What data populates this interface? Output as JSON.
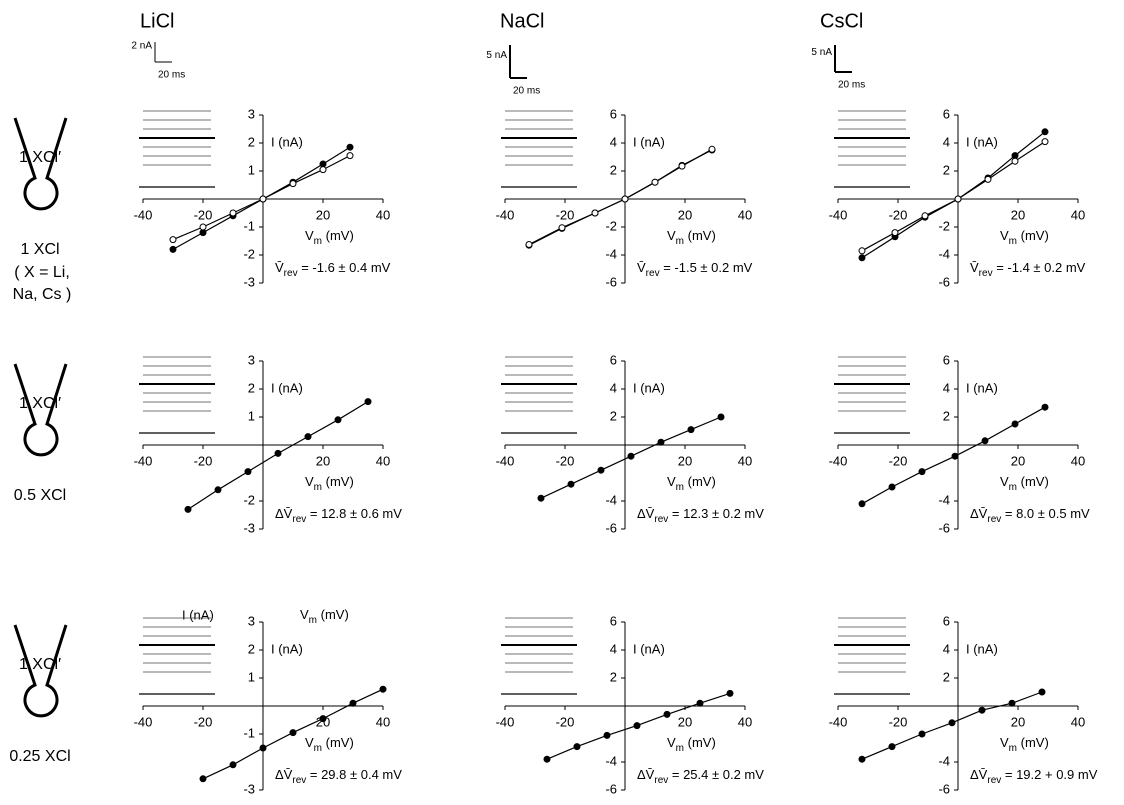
{
  "columns": [
    "LiCl",
    "NaCl",
    "CsCl"
  ],
  "scale_bars": [
    {
      "current": "2 nA",
      "time": "20 ms"
    },
    {
      "current": "5 nA",
      "time": "20 ms"
    },
    {
      "current": "5 nA",
      "time": "20 ms"
    }
  ],
  "rows": [
    {
      "pipette": "1 XCl′",
      "bath": "1 XCl",
      "note": [
        "( X = Li,",
        "Na, Cs )"
      ]
    },
    {
      "pipette": "1 XCl′",
      "bath": "0.5 XCl"
    },
    {
      "pipette": "1 XCl′",
      "bath": "0.25 XCl"
    }
  ],
  "stray_labels": {
    "current": "I (nA)",
    "voltage": [
      "V",
      "m",
      " (mV)"
    ]
  },
  "chart_data": [
    {
      "type": "line",
      "ylabel": "I (nA)",
      "xlabel": [
        "V",
        "m",
        " (mV)"
      ],
      "annotation": [
        "V̄",
        "rev",
        " = -1.6 ± 0.4 mV"
      ],
      "xlim": [
        -40,
        40
      ],
      "xticks": [
        -40,
        -20,
        20,
        40
      ],
      "ylim": [
        -3,
        3
      ],
      "yticks": [
        3,
        2,
        1,
        -1,
        -2,
        -3
      ],
      "x": [
        -30,
        -20,
        -10,
        0,
        10,
        20,
        29
      ],
      "series": [
        {
          "color": "#000000",
          "fill": "#000000",
          "values": [
            -1.8,
            -1.2,
            -0.6,
            0,
            0.6,
            1.25,
            1.85
          ]
        },
        {
          "color": "#000000",
          "fill": "#ffffff",
          "values": [
            -1.45,
            -1.0,
            -0.5,
            0,
            0.55,
            1.05,
            1.55
          ]
        }
      ]
    },
    {
      "type": "line",
      "ylabel": "I (nA)",
      "xlabel": [
        "V",
        "m",
        " (mV)"
      ],
      "annotation": [
        "V̄",
        "rev",
        " = -1.5 ± 0.2 mV"
      ],
      "xlim": [
        -40,
        40
      ],
      "xticks": [
        -40,
        -20,
        20,
        40
      ],
      "ylim": [
        -6,
        6
      ],
      "yticks": [
        6,
        4,
        2,
        -2,
        -4,
        -6
      ],
      "x": [
        -32,
        -21,
        -10,
        0,
        10,
        19,
        29
      ],
      "series": [
        {
          "color": "#000000",
          "fill": "#000000",
          "values": [
            -3.3,
            -2.1,
            -1.0,
            0,
            1.2,
            2.4,
            3.5
          ]
        },
        {
          "color": "#000000",
          "fill": "#ffffff",
          "values": [
            -3.25,
            -2.05,
            -1.0,
            0,
            1.2,
            2.35,
            3.55
          ]
        }
      ]
    },
    {
      "type": "line",
      "ylabel": "I (nA)",
      "xlabel": [
        "V",
        "m",
        " (mV)"
      ],
      "annotation": [
        "V̄",
        "rev",
        " = -1.4 ± 0.2 mV"
      ],
      "xlim": [
        -40,
        40
      ],
      "xticks": [
        -40,
        -20,
        20,
        40
      ],
      "ylim": [
        -6,
        6
      ],
      "yticks": [
        6,
        4,
        2,
        -2,
        -4,
        -6
      ],
      "x": [
        -32,
        -21,
        -11,
        0,
        10,
        19,
        29
      ],
      "series": [
        {
          "color": "#000000",
          "fill": "#000000",
          "values": [
            -4.2,
            -2.7,
            -1.3,
            0,
            1.5,
            3.1,
            4.8
          ]
        },
        {
          "color": "#000000",
          "fill": "#ffffff",
          "values": [
            -3.7,
            -2.4,
            -1.2,
            0,
            1.4,
            2.7,
            4.1
          ]
        }
      ]
    },
    {
      "type": "line",
      "ylabel": "I (nA)",
      "xlabel": [
        "V",
        "m",
        " (mV)"
      ],
      "annotation": [
        "ΔV̄",
        "rev",
        " = 12.8 ± 0.6 mV"
      ],
      "xlim": [
        -40,
        40
      ],
      "xticks": [
        -40,
        -20,
        20,
        40
      ],
      "ylim": [
        -3,
        3
      ],
      "yticks": [
        3,
        2,
        1,
        -2,
        -3
      ],
      "x": [
        -25,
        -15,
        -5,
        5,
        15,
        25,
        35
      ],
      "series": [
        {
          "color": "#000000",
          "fill": "#000000",
          "values": [
            -2.3,
            -1.6,
            -0.95,
            -0.3,
            0.3,
            0.9,
            1.55
          ]
        }
      ]
    },
    {
      "type": "line",
      "ylabel": "I (nA)",
      "xlabel": [
        "V",
        "m",
        " (mV)"
      ],
      "annotation": [
        "ΔV̄",
        "rev",
        " = 12.3 ± 0.2 mV"
      ],
      "xlim": [
        -40,
        40
      ],
      "xticks": [
        -40,
        -20,
        20,
        40
      ],
      "ylim": [
        -6,
        6
      ],
      "yticks": [
        6,
        4,
        2,
        -4,
        -6
      ],
      "x": [
        -28,
        -18,
        -8,
        2,
        12,
        22,
        32
      ],
      "series": [
        {
          "color": "#000000",
          "fill": "#000000",
          "values": [
            -3.8,
            -2.8,
            -1.8,
            -0.8,
            0.2,
            1.1,
            2.0
          ]
        }
      ]
    },
    {
      "type": "line",
      "ylabel": "I (nA)",
      "xlabel": [
        "V",
        "m",
        " (mV)"
      ],
      "annotation": [
        "ΔV̄",
        "rev",
        " = 8.0 ± 0.5 mV"
      ],
      "xlim": [
        -40,
        40
      ],
      "xticks": [
        -40,
        -20,
        20,
        40
      ],
      "ylim": [
        -6,
        6
      ],
      "yticks": [
        6,
        4,
        2,
        -4,
        -6
      ],
      "x": [
        -32,
        -22,
        -12,
        -1,
        9,
        19,
        29
      ],
      "series": [
        {
          "color": "#000000",
          "fill": "#000000",
          "values": [
            -4.2,
            -3.0,
            -1.9,
            -0.8,
            0.3,
            1.5,
            2.7
          ]
        }
      ]
    },
    {
      "type": "line",
      "ylabel": "I (nA)",
      "xlabel": [
        "V",
        "m",
        " (mV)"
      ],
      "annotation": [
        "ΔV̄",
        "rev",
        " = 29.8 ± 0.4 mV"
      ],
      "xlim": [
        -40,
        40
      ],
      "xticks": [
        -40,
        -20,
        20,
        40
      ],
      "ylim": [
        -3,
        3
      ],
      "yticks": [
        3,
        2,
        1,
        -1,
        -3
      ],
      "x": [
        -20,
        -10,
        0,
        10,
        20,
        30,
        40
      ],
      "series": [
        {
          "color": "#000000",
          "fill": "#000000",
          "values": [
            -2.6,
            -2.1,
            -1.5,
            -0.95,
            -0.45,
            0.1,
            0.6
          ]
        }
      ]
    },
    {
      "type": "line",
      "ylabel": "I (nA)",
      "xlabel": [
        "V",
        "m",
        " (mV)"
      ],
      "annotation": [
        "ΔV̄",
        "rev",
        " = 25.4 ± 0.2 mV"
      ],
      "xlim": [
        -40,
        40
      ],
      "xticks": [
        -40,
        -20,
        20,
        40
      ],
      "ylim": [
        -6,
        6
      ],
      "yticks": [
        6,
        4,
        2,
        -4,
        -6
      ],
      "x": [
        -26,
        -16,
        -6,
        4,
        14,
        25,
        35
      ],
      "series": [
        {
          "color": "#000000",
          "fill": "#000000",
          "values": [
            -3.8,
            -2.9,
            -2.1,
            -1.4,
            -0.6,
            0.2,
            0.9
          ]
        }
      ]
    },
    {
      "type": "line",
      "ylabel": "I (nA)",
      "xlabel": [
        "V",
        "m",
        " (mV)"
      ],
      "annotation": [
        "ΔV̄",
        "rev",
        " = 19.2 + 0.9 mV"
      ],
      "xlim": [
        -40,
        40
      ],
      "xticks": [
        -40,
        -20,
        20,
        40
      ],
      "ylim": [
        -6,
        6
      ],
      "yticks": [
        6,
        4,
        2,
        -4,
        -6
      ],
      "x": [
        -32,
        -22,
        -12,
        -2,
        8,
        18,
        28
      ],
      "series": [
        {
          "color": "#000000",
          "fill": "#000000",
          "values": [
            -3.8,
            -2.9,
            -2.0,
            -1.2,
            -0.3,
            0.2,
            1.0
          ]
        }
      ]
    }
  ]
}
